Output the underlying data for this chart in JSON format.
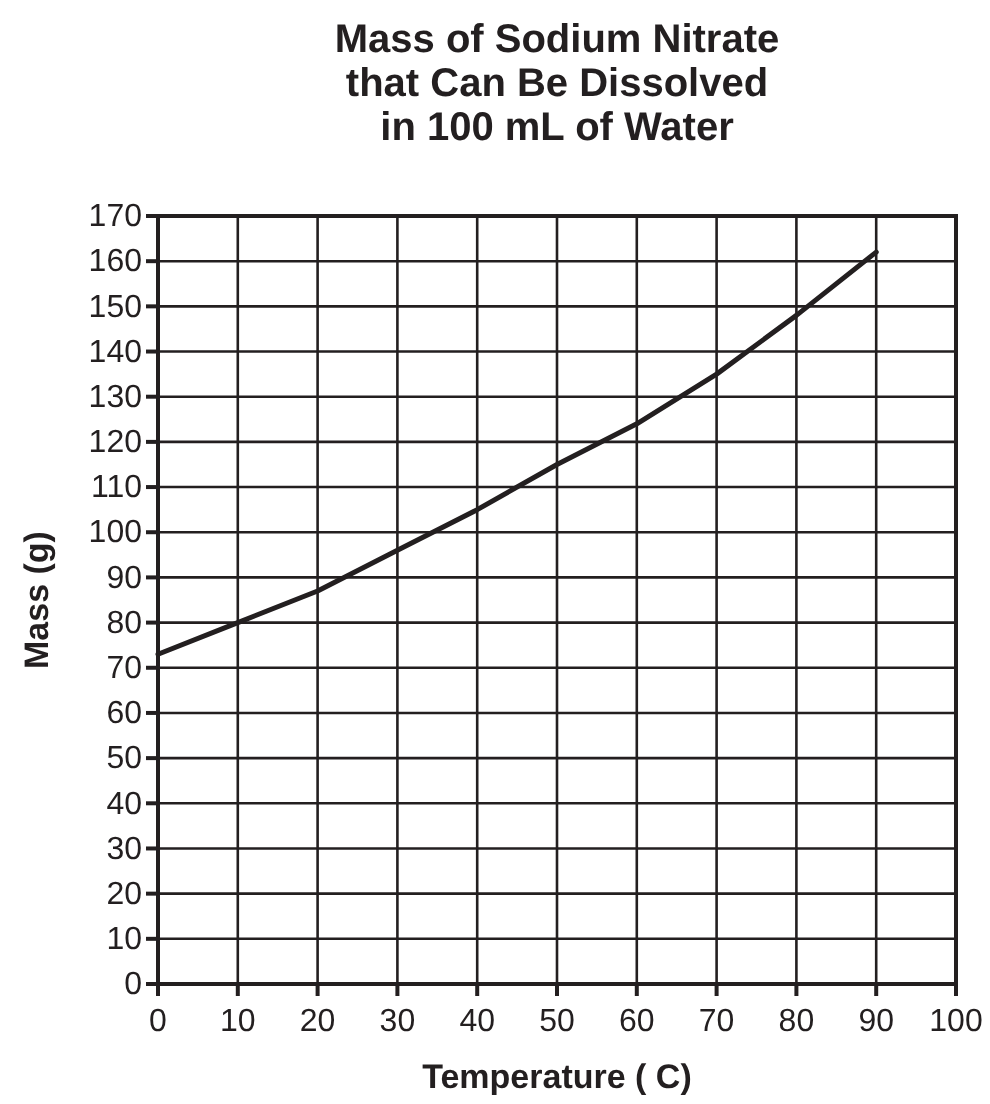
{
  "chart_data": {
    "type": "line",
    "title": "Mass of Sodium Nitrate\nthat Can Be Dissolved\nin 100 mL of Water",
    "xlabel": "Temperature ( C)",
    "ylabel": "Mass (g)",
    "x": [
      0,
      10,
      20,
      30,
      40,
      50,
      60,
      70,
      80,
      90
    ],
    "series": [
      {
        "color": "#231f20",
        "values": [
          73,
          80,
          87,
          96,
          105,
          115,
          124,
          135,
          148,
          162
        ]
      }
    ],
    "xlim": [
      0,
      100
    ],
    "xticks": [
      0,
      10,
      20,
      30,
      40,
      50,
      60,
      70,
      80,
      90,
      100
    ],
    "ylim": [
      0,
      170
    ],
    "yticks": [
      0,
      10,
      20,
      30,
      40,
      50,
      60,
      70,
      80,
      90,
      100,
      110,
      120,
      130,
      140,
      150,
      160,
      170
    ],
    "grid": true,
    "marker": "none",
    "line_style": "solid"
  }
}
